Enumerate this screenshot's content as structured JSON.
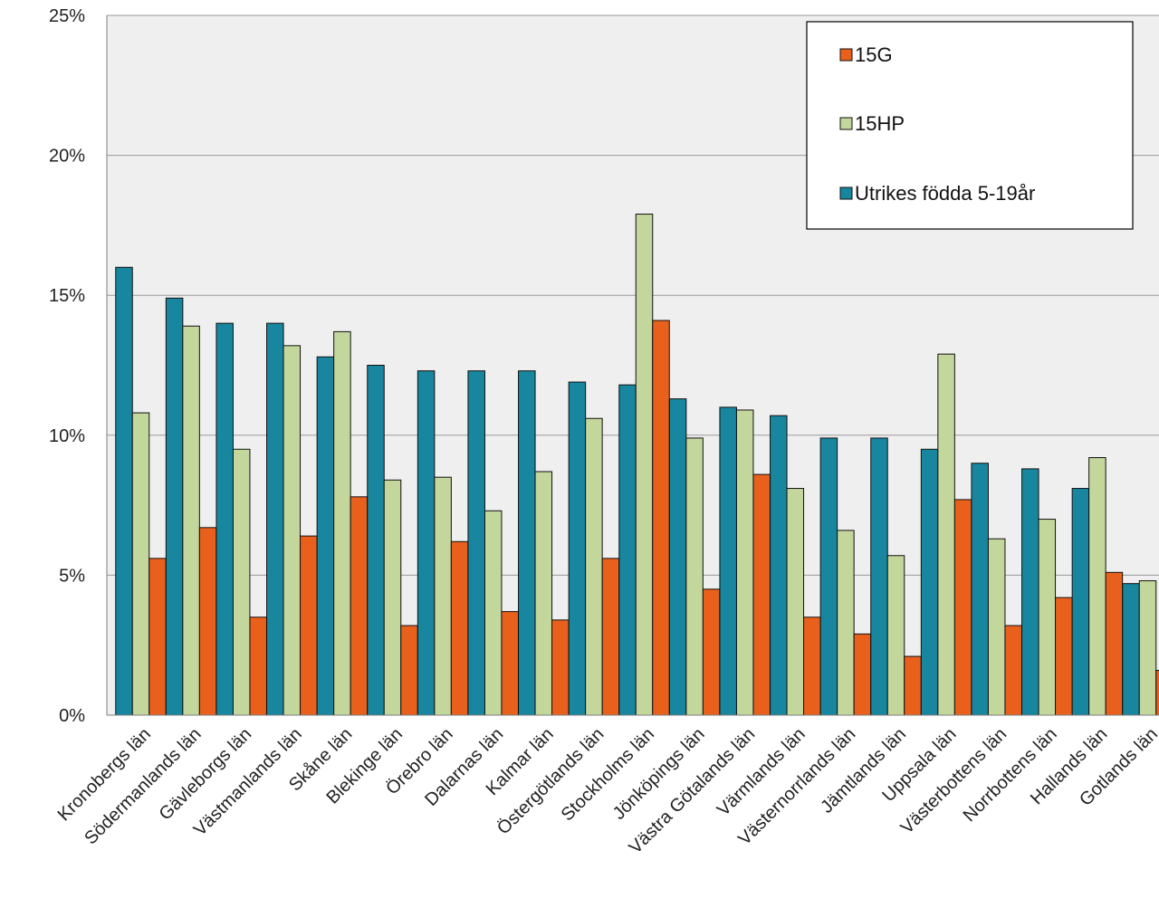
{
  "chart_data": {
    "type": "bar",
    "categories": [
      "Kronobergs län",
      "Södermanlands län",
      "Gävleborgs län",
      "Västmanlands län",
      "Skåne län",
      "Blekinge län",
      "Örebro län",
      "Dalarnas län",
      "Kalmar län",
      "Östergötlands län",
      "Stockholms län",
      "Jönköpings län",
      "Västra Götalands län",
      "Värmlands län",
      "Västernorrlands län",
      "Jämtlands län",
      "Uppsala län",
      "Västerbottens län",
      "Norrbottens län",
      "Hallands län",
      "Gotlands län"
    ],
    "series": [
      {
        "name": "Utrikes födda 5-19år",
        "color": "#17869e",
        "values": [
          16.0,
          14.9,
          14.0,
          14.0,
          12.8,
          12.5,
          12.3,
          12.3,
          12.3,
          11.9,
          11.8,
          11.3,
          11.0,
          10.7,
          9.9,
          9.9,
          9.5,
          9.0,
          8.8,
          8.1,
          4.7
        ]
      },
      {
        "name": "15HP",
        "color": "#c3d69b",
        "values": [
          10.8,
          13.9,
          9.5,
          13.2,
          13.7,
          8.4,
          8.5,
          7.3,
          8.7,
          10.6,
          17.9,
          9.9,
          10.9,
          8.1,
          6.6,
          5.7,
          12.9,
          6.3,
          7.0,
          9.2,
          4.8
        ]
      },
      {
        "name": "15G",
        "color": "#e8601c",
        "values": [
          5.6,
          6.7,
          3.5,
          6.4,
          7.8,
          3.2,
          6.2,
          3.7,
          3.4,
          5.6,
          14.1,
          4.5,
          8.6,
          3.5,
          2.9,
          2.1,
          7.7,
          3.2,
          4.2,
          5.1,
          1.6
        ]
      }
    ],
    "legend_order": [
      "15G",
      "15HP",
      "Utrikes födda 5-19år"
    ],
    "legend_position": "top-right",
    "ylim": [
      0,
      25
    ],
    "yticks": [
      "0%",
      "5%",
      "10%",
      "15%",
      "20%",
      "25%"
    ],
    "ytick_values": [
      0,
      5,
      10,
      15,
      20,
      25
    ],
    "grid": true,
    "plot_background": "#efefef",
    "title": "",
    "xlabel": "",
    "ylabel": ""
  }
}
